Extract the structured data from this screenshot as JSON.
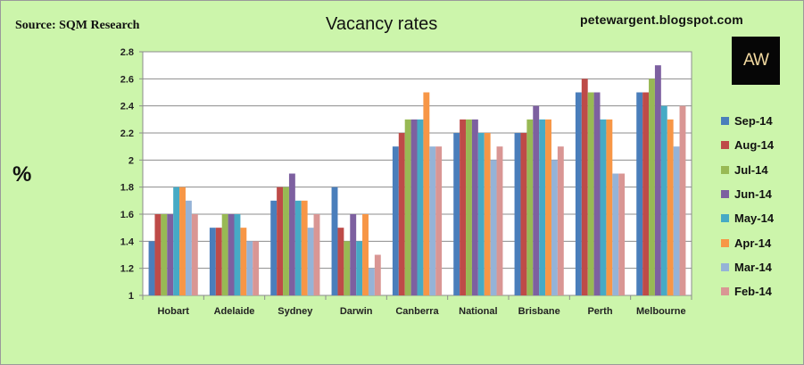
{
  "header": {
    "source": "Source: SQM Research",
    "title": "Vacancy rates",
    "blog": "petewargent.blogspot.com",
    "logo_text": "AW"
  },
  "chart_data": {
    "type": "bar",
    "title": "Vacancy rates",
    "ylabel": "%",
    "xlabel": "",
    "ylim": [
      1,
      2.8
    ],
    "yticks": [
      1,
      1.2,
      1.4,
      1.6,
      1.8,
      2,
      2.2,
      2.4,
      2.6,
      2.8
    ],
    "ytick_labels": [
      "1",
      "1.2",
      "1.4",
      "1.6",
      "1.8",
      "2",
      "2.2",
      "2.4",
      "2.6",
      "2.8"
    ],
    "grid": true,
    "legend_position": "right",
    "categories": [
      "Hobart",
      "Adelaide",
      "Sydney",
      "Darwin",
      "Canberra",
      "National",
      "Brisbane",
      "Perth",
      "Melbourne"
    ],
    "series": [
      {
        "name": "Sep-14",
        "color": "#4a7ebb",
        "values": [
          1.4,
          1.5,
          1.7,
          1.8,
          2.1,
          2.2,
          2.2,
          2.5,
          2.5
        ]
      },
      {
        "name": "Aug-14",
        "color": "#be4b48",
        "values": [
          1.6,
          1.5,
          1.8,
          1.5,
          2.2,
          2.3,
          2.2,
          2.6,
          2.5
        ]
      },
      {
        "name": "Jul-14",
        "color": "#98b954",
        "values": [
          1.6,
          1.6,
          1.8,
          1.4,
          2.3,
          2.3,
          2.3,
          2.5,
          2.6
        ]
      },
      {
        "name": "Jun-14",
        "color": "#7d60a0",
        "values": [
          1.6,
          1.6,
          1.9,
          1.6,
          2.3,
          2.3,
          2.4,
          2.5,
          2.7
        ]
      },
      {
        "name": "May-14",
        "color": "#46aac5",
        "values": [
          1.8,
          1.6,
          1.7,
          1.4,
          2.3,
          2.2,
          2.3,
          2.3,
          2.4
        ]
      },
      {
        "name": "Apr-14",
        "color": "#f79646",
        "values": [
          1.8,
          1.5,
          1.7,
          1.6,
          2.5,
          2.2,
          2.3,
          2.3,
          2.3
        ]
      },
      {
        "name": "Mar-14",
        "color": "#95b3d7",
        "values": [
          1.7,
          1.4,
          1.5,
          1.2,
          2.1,
          2.0,
          2.0,
          1.9,
          2.1
        ]
      },
      {
        "name": "Feb-14",
        "color": "#d99694",
        "values": [
          1.6,
          1.4,
          1.6,
          1.3,
          2.1,
          2.1,
          2.1,
          1.9,
          2.4
        ]
      }
    ]
  }
}
